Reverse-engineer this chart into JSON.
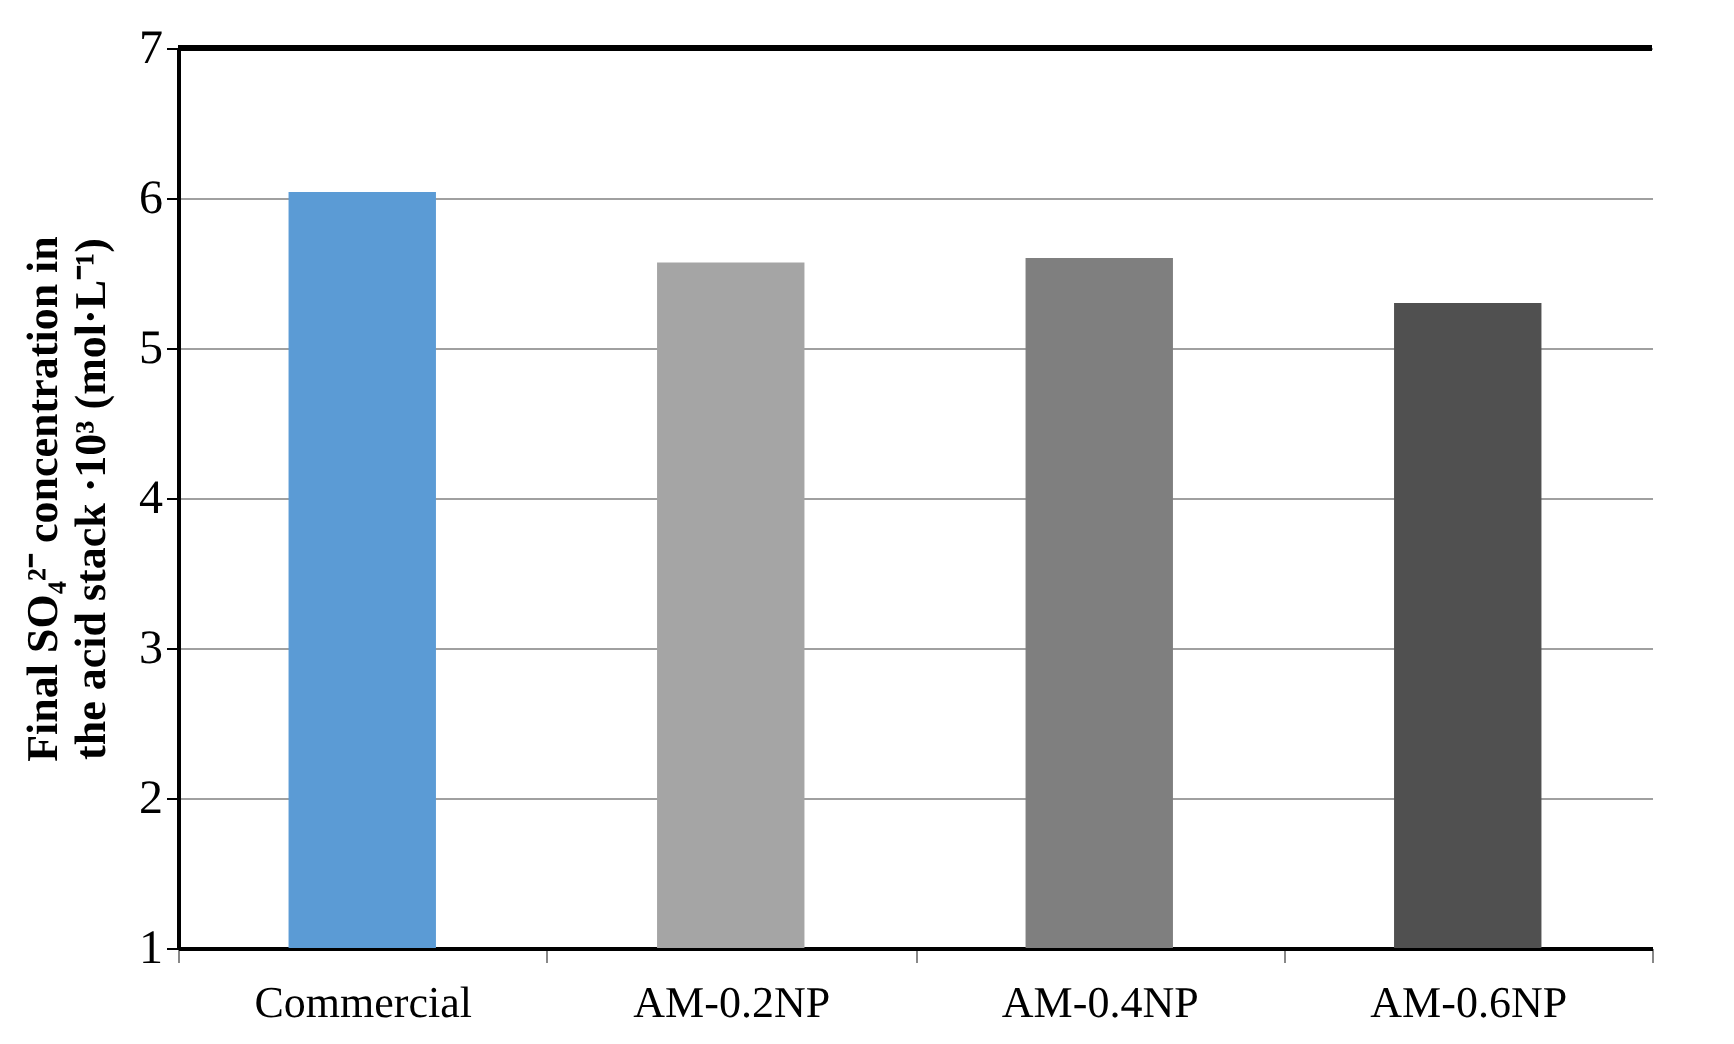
{
  "chart_data": {
    "type": "bar",
    "ylabel": "Final SO₄²⁻ concentration in the acid stack ·10³ (mol·L⁻¹)",
    "categories": [
      "Commercial",
      "AM-0.2NP",
      "AM-0.4NP",
      "AM-0.6NP"
    ],
    "values": [
      6.04,
      5.57,
      5.6,
      5.3
    ],
    "colors": [
      "#5b9bd5",
      "#a5a5a5",
      "#7f7f7f",
      "#505050"
    ],
    "ylim": [
      1,
      7
    ],
    "yticks": [
      1,
      2,
      3,
      4,
      5,
      6,
      7
    ],
    "grid": "y",
    "legend": false
  }
}
